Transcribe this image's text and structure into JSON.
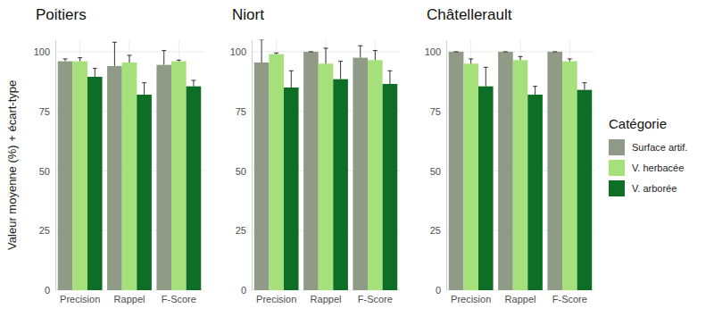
{
  "chart_data": {
    "type": "bar",
    "y_label": "Valeur moyenne (%) + écart-type",
    "legend_title": "Catégorie",
    "legend": "right",
    "grid": true,
    "ylim": [
      0,
      105
    ],
    "yticks": [
      0,
      25,
      50,
      75,
      100
    ],
    "panels": [
      "Poitiers",
      "Niort",
      "Châtellerault"
    ],
    "categories": [
      "Precision",
      "Rappel",
      "F-Score"
    ],
    "series": [
      {
        "name": "Surface artif.",
        "color": "#8f9a87",
        "values": [
          [
            96,
            94,
            94.5
          ],
          [
            95.5,
            100,
            97.5
          ],
          [
            100,
            100,
            100
          ]
        ],
        "errors": [
          [
            1,
            10,
            6
          ],
          [
            9.5,
            0,
            5
          ],
          [
            0,
            0,
            0
          ]
        ]
      },
      {
        "name": "V. herbacée",
        "color": "#a6e07a",
        "values": [
          [
            96,
            95.5,
            96
          ],
          [
            99,
            95,
            96.5
          ],
          [
            95,
            96.5,
            96
          ]
        ],
        "errors": [
          [
            1.5,
            3,
            0.5
          ],
          [
            0.5,
            6.5,
            4
          ],
          [
            2,
            1.5,
            1
          ]
        ]
      },
      {
        "name": "V. arborée",
        "color": "#0e6e26",
        "values": [
          [
            89.5,
            82,
            85.5
          ],
          [
            85,
            88.5,
            86.5
          ],
          [
            85.5,
            82,
            84
          ]
        ],
        "errors": [
          [
            3.5,
            5,
            2.5
          ],
          [
            7,
            7.5,
            5.5
          ],
          [
            8,
            3.5,
            3
          ]
        ]
      }
    ]
  }
}
